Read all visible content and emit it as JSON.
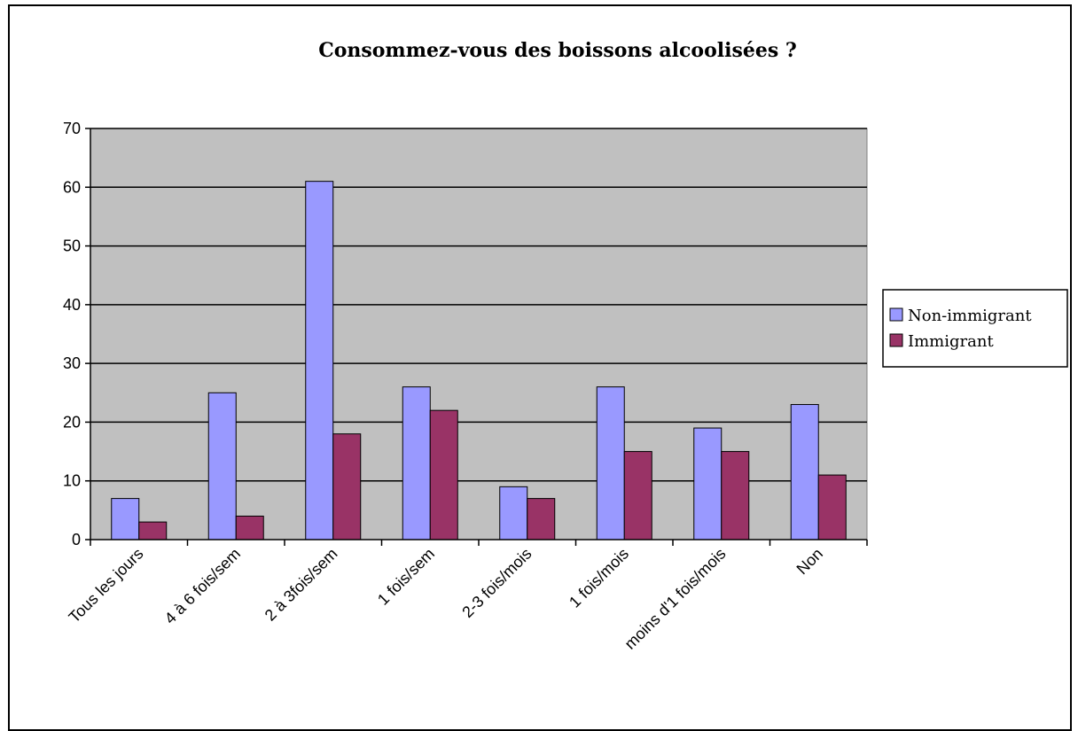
{
  "chart_data": {
    "type": "bar",
    "title": "Consommez-vous des boissons alcoolisées ?",
    "xlabel": "",
    "ylabel": "",
    "categories": [
      "Tous les jours",
      "4 à 6 fois/sem",
      "2 à 3fois/sem",
      "1 fois/sem",
      "2-3 fois/mois",
      "1 fois/mois",
      "moins d'1 fois/mois",
      "Non"
    ],
    "series": [
      {
        "name": "Non-immigrant",
        "values": [
          7,
          25,
          61,
          26,
          9,
          26,
          19,
          23
        ],
        "color": "#9999ff"
      },
      {
        "name": "Immigrant",
        "values": [
          3,
          4,
          18,
          22,
          7,
          15,
          15,
          11
        ],
        "color": "#993366"
      }
    ],
    "ylim": [
      0,
      70
    ],
    "yticks": [
      0,
      10,
      20,
      30,
      40,
      50,
      60,
      70
    ],
    "grid": true,
    "plot_background": "#c0c0c0",
    "legend_position": "right"
  }
}
